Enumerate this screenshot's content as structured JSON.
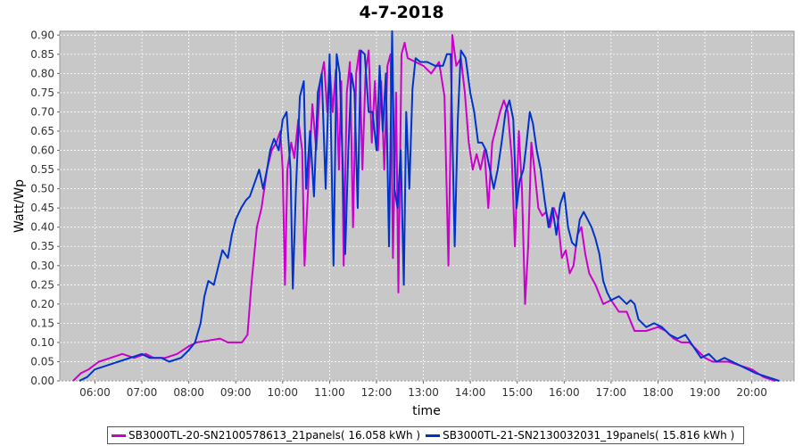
{
  "chart_data": {
    "type": "line",
    "title": "4-7-2018",
    "xlabel": "time",
    "ylabel": "Watt/Wp",
    "xlim_hours": [
      5.25,
      20.9
    ],
    "ylim": [
      0.0,
      0.91
    ],
    "x_ticks": [
      "06:00",
      "07:00",
      "08:00",
      "09:00",
      "10:00",
      "11:00",
      "12:00",
      "13:00",
      "14:00",
      "15:00",
      "16:00",
      "17:00",
      "18:00",
      "19:00",
      "20:00"
    ],
    "y_ticks": [
      "0.00",
      "0.05",
      "0.10",
      "0.15",
      "0.20",
      "0.25",
      "0.30",
      "0.35",
      "0.40",
      "0.45",
      "0.50",
      "0.55",
      "0.60",
      "0.65",
      "0.70",
      "0.75",
      "0.80",
      "0.85",
      "0.90"
    ],
    "grid": true,
    "legend_position": "bottom",
    "background_color": "#c8c8c8",
    "series": [
      {
        "name": "SB3000TL-20-SN2100578613_21panels( 16.058 kWh )",
        "color": "#cc00cc",
        "points": [
          [
            "05:32",
            0.0
          ],
          [
            "05:42",
            0.02
          ],
          [
            "05:52",
            0.03
          ],
          [
            "06:05",
            0.05
          ],
          [
            "06:20",
            0.06
          ],
          [
            "06:35",
            0.07
          ],
          [
            "06:50",
            0.06
          ],
          [
            "07:05",
            0.07
          ],
          [
            "07:15",
            0.06
          ],
          [
            "07:30",
            0.06
          ],
          [
            "07:45",
            0.07
          ],
          [
            "08:00",
            0.09
          ],
          [
            "08:10",
            0.1
          ],
          [
            "08:25",
            0.105
          ],
          [
            "08:40",
            0.11
          ],
          [
            "08:50",
            0.1
          ],
          [
            "09:00",
            0.1
          ],
          [
            "09:08",
            0.1
          ],
          [
            "09:15",
            0.12
          ],
          [
            "09:20",
            0.25
          ],
          [
            "09:27",
            0.4
          ],
          [
            "09:33",
            0.45
          ],
          [
            "09:40",
            0.55
          ],
          [
            "09:46",
            0.6
          ],
          [
            "09:52",
            0.62
          ],
          [
            "09:57",
            0.65
          ],
          [
            "10:00",
            0.55
          ],
          [
            "10:03",
            0.25
          ],
          [
            "10:06",
            0.55
          ],
          [
            "10:11",
            0.62
          ],
          [
            "10:15",
            0.58
          ],
          [
            "10:20",
            0.68
          ],
          [
            "10:25",
            0.6
          ],
          [
            "10:28",
            0.3
          ],
          [
            "10:33",
            0.52
          ],
          [
            "10:38",
            0.72
          ],
          [
            "10:43",
            0.6
          ],
          [
            "10:48",
            0.78
          ],
          [
            "10:53",
            0.83
          ],
          [
            "10:57",
            0.7
          ],
          [
            "11:00",
            0.82
          ],
          [
            "11:04",
            0.7
          ],
          [
            "11:08",
            0.81
          ],
          [
            "11:12",
            0.55
          ],
          [
            "11:15",
            0.78
          ],
          [
            "11:18",
            0.3
          ],
          [
            "11:22",
            0.75
          ],
          [
            "11:26",
            0.83
          ],
          [
            "11:30",
            0.4
          ],
          [
            "11:34",
            0.8
          ],
          [
            "11:38",
            0.86
          ],
          [
            "11:42",
            0.55
          ],
          [
            "11:46",
            0.8
          ],
          [
            "11:50",
            0.86
          ],
          [
            "11:54",
            0.62
          ],
          [
            "11:58",
            0.78
          ],
          [
            "12:02",
            0.6
          ],
          [
            "12:06",
            0.78
          ],
          [
            "12:10",
            0.55
          ],
          [
            "12:14",
            0.82
          ],
          [
            "12:18",
            0.85
          ],
          [
            "12:21",
            0.32
          ],
          [
            "12:25",
            0.75
          ],
          [
            "12:28",
            0.23
          ],
          [
            "12:32",
            0.85
          ],
          [
            "12:36",
            0.88
          ],
          [
            "12:40",
            0.84
          ],
          [
            "12:50",
            0.83
          ],
          [
            "13:00",
            0.82
          ],
          [
            "13:10",
            0.8
          ],
          [
            "13:20",
            0.83
          ],
          [
            "13:27",
            0.74
          ],
          [
            "13:32",
            0.3
          ],
          [
            "13:37",
            0.9
          ],
          [
            "13:42",
            0.82
          ],
          [
            "13:48",
            0.84
          ],
          [
            "13:53",
            0.75
          ],
          [
            "13:58",
            0.62
          ],
          [
            "14:03",
            0.55
          ],
          [
            "14:08",
            0.59
          ],
          [
            "14:13",
            0.55
          ],
          [
            "14:18",
            0.6
          ],
          [
            "14:23",
            0.45
          ],
          [
            "14:28",
            0.62
          ],
          [
            "14:33",
            0.66
          ],
          [
            "14:38",
            0.7
          ],
          [
            "14:43",
            0.73
          ],
          [
            "14:48",
            0.7
          ],
          [
            "14:53",
            0.58
          ],
          [
            "14:57",
            0.35
          ],
          [
            "15:02",
            0.65
          ],
          [
            "15:06",
            0.5
          ],
          [
            "15:10",
            0.2
          ],
          [
            "15:14",
            0.35
          ],
          [
            "15:18",
            0.62
          ],
          [
            "15:22",
            0.55
          ],
          [
            "15:27",
            0.45
          ],
          [
            "15:32",
            0.43
          ],
          [
            "15:37",
            0.44
          ],
          [
            "15:42",
            0.4
          ],
          [
            "15:47",
            0.45
          ],
          [
            "15:52",
            0.42
          ],
          [
            "15:57",
            0.32
          ],
          [
            "16:02",
            0.34
          ],
          [
            "16:07",
            0.28
          ],
          [
            "16:12",
            0.3
          ],
          [
            "16:17",
            0.38
          ],
          [
            "16:22",
            0.4
          ],
          [
            "16:27",
            0.33
          ],
          [
            "16:32",
            0.28
          ],
          [
            "16:40",
            0.25
          ],
          [
            "16:50",
            0.2
          ],
          [
            "17:00",
            0.21
          ],
          [
            "17:10",
            0.18
          ],
          [
            "17:20",
            0.18
          ],
          [
            "17:30",
            0.13
          ],
          [
            "17:45",
            0.13
          ],
          [
            "18:00",
            0.14
          ],
          [
            "18:10",
            0.13
          ],
          [
            "18:20",
            0.11
          ],
          [
            "18:30",
            0.1
          ],
          [
            "18:40",
            0.1
          ],
          [
            "18:50",
            0.08
          ],
          [
            "19:00",
            0.06
          ],
          [
            "19:10",
            0.05
          ],
          [
            "19:20",
            0.05
          ],
          [
            "19:30",
            0.05
          ],
          [
            "19:45",
            0.04
          ],
          [
            "20:00",
            0.03
          ],
          [
            "20:15",
            0.01
          ],
          [
            "20:30",
            0.0
          ]
        ]
      },
      {
        "name": "SB3000TL-21-SN2130032031_19panels( 15.816 kWh )",
        "color": "#0033cc",
        "points": [
          [
            "05:40",
            0.0
          ],
          [
            "05:50",
            0.01
          ],
          [
            "06:00",
            0.03
          ],
          [
            "06:15",
            0.04
          ],
          [
            "06:30",
            0.05
          ],
          [
            "06:45",
            0.06
          ],
          [
            "07:00",
            0.07
          ],
          [
            "07:10",
            0.06
          ],
          [
            "07:25",
            0.06
          ],
          [
            "07:35",
            0.05
          ],
          [
            "07:50",
            0.06
          ],
          [
            "08:00",
            0.08
          ],
          [
            "08:08",
            0.1
          ],
          [
            "08:15",
            0.15
          ],
          [
            "08:20",
            0.22
          ],
          [
            "08:25",
            0.26
          ],
          [
            "08:32",
            0.25
          ],
          [
            "08:38",
            0.3
          ],
          [
            "08:43",
            0.34
          ],
          [
            "08:50",
            0.32
          ],
          [
            "08:55",
            0.38
          ],
          [
            "09:00",
            0.42
          ],
          [
            "09:07",
            0.45
          ],
          [
            "09:13",
            0.47
          ],
          [
            "09:18",
            0.48
          ],
          [
            "09:25",
            0.52
          ],
          [
            "09:30",
            0.55
          ],
          [
            "09:35",
            0.5
          ],
          [
            "09:40",
            0.55
          ],
          [
            "09:44",
            0.6
          ],
          [
            "09:49",
            0.63
          ],
          [
            "09:55",
            0.6
          ],
          [
            "10:00",
            0.68
          ],
          [
            "10:05",
            0.7
          ],
          [
            "10:10",
            0.55
          ],
          [
            "10:13",
            0.24
          ],
          [
            "10:17",
            0.5
          ],
          [
            "10:22",
            0.74
          ],
          [
            "10:27",
            0.78
          ],
          [
            "10:30",
            0.5
          ],
          [
            "10:35",
            0.65
          ],
          [
            "10:40",
            0.48
          ],
          [
            "10:45",
            0.75
          ],
          [
            "10:50",
            0.8
          ],
          [
            "10:55",
            0.5
          ],
          [
            "11:00",
            0.85
          ],
          [
            "11:05",
            0.3
          ],
          [
            "11:09",
            0.85
          ],
          [
            "11:13",
            0.8
          ],
          [
            "11:17",
            0.55
          ],
          [
            "11:20",
            0.33
          ],
          [
            "11:24",
            0.6
          ],
          [
            "11:28",
            0.8
          ],
          [
            "11:32",
            0.75
          ],
          [
            "11:36",
            0.45
          ],
          [
            "11:40",
            0.86
          ],
          [
            "11:45",
            0.85
          ],
          [
            "11:50",
            0.7
          ],
          [
            "11:55",
            0.7
          ],
          [
            "12:00",
            0.6
          ],
          [
            "12:04",
            0.82
          ],
          [
            "12:08",
            0.65
          ],
          [
            "12:12",
            0.8
          ],
          [
            "12:16",
            0.35
          ],
          [
            "12:20",
            0.91
          ],
          [
            "12:23",
            0.5
          ],
          [
            "12:27",
            0.45
          ],
          [
            "12:31",
            0.6
          ],
          [
            "12:35",
            0.25
          ],
          [
            "12:38",
            0.7
          ],
          [
            "12:42",
            0.5
          ],
          [
            "12:46",
            0.76
          ],
          [
            "12:50",
            0.84
          ],
          [
            "12:56",
            0.83
          ],
          [
            "13:05",
            0.83
          ],
          [
            "13:15",
            0.82
          ],
          [
            "13:25",
            0.82
          ],
          [
            "13:30",
            0.85
          ],
          [
            "13:35",
            0.85
          ],
          [
            "13:40",
            0.35
          ],
          [
            "13:44",
            0.68
          ],
          [
            "13:48",
            0.86
          ],
          [
            "13:54",
            0.84
          ],
          [
            "14:00",
            0.75
          ],
          [
            "14:05",
            0.7
          ],
          [
            "14:10",
            0.62
          ],
          [
            "14:15",
            0.62
          ],
          [
            "14:20",
            0.6
          ],
          [
            "14:25",
            0.55
          ],
          [
            "14:30",
            0.5
          ],
          [
            "14:35",
            0.55
          ],
          [
            "14:40",
            0.62
          ],
          [
            "14:45",
            0.7
          ],
          [
            "14:50",
            0.73
          ],
          [
            "14:55",
            0.68
          ],
          [
            "14:59",
            0.45
          ],
          [
            "15:03",
            0.52
          ],
          [
            "15:08",
            0.55
          ],
          [
            "15:12",
            0.62
          ],
          [
            "15:16",
            0.7
          ],
          [
            "15:20",
            0.67
          ],
          [
            "15:25",
            0.6
          ],
          [
            "15:30",
            0.55
          ],
          [
            "15:35",
            0.47
          ],
          [
            "15:40",
            0.4
          ],
          [
            "15:45",
            0.45
          ],
          [
            "15:50",
            0.38
          ],
          [
            "15:55",
            0.46
          ],
          [
            "16:00",
            0.49
          ],
          [
            "16:05",
            0.4
          ],
          [
            "16:10",
            0.36
          ],
          [
            "16:15",
            0.35
          ],
          [
            "16:20",
            0.42
          ],
          [
            "16:25",
            0.44
          ],
          [
            "16:30",
            0.42
          ],
          [
            "16:35",
            0.4
          ],
          [
            "16:40",
            0.37
          ],
          [
            "16:45",
            0.33
          ],
          [
            "16:50",
            0.26
          ],
          [
            "16:55",
            0.23
          ],
          [
            "17:00",
            0.21
          ],
          [
            "17:10",
            0.22
          ],
          [
            "17:20",
            0.2
          ],
          [
            "17:25",
            0.21
          ],
          [
            "17:30",
            0.2
          ],
          [
            "17:35",
            0.16
          ],
          [
            "17:45",
            0.14
          ],
          [
            "17:55",
            0.15
          ],
          [
            "18:05",
            0.14
          ],
          [
            "18:15",
            0.12
          ],
          [
            "18:25",
            0.11
          ],
          [
            "18:35",
            0.12
          ],
          [
            "18:45",
            0.09
          ],
          [
            "18:55",
            0.06
          ],
          [
            "19:05",
            0.07
          ],
          [
            "19:15",
            0.05
          ],
          [
            "19:25",
            0.06
          ],
          [
            "19:35",
            0.05
          ],
          [
            "19:45",
            0.04
          ],
          [
            "19:55",
            0.03
          ],
          [
            "20:05",
            0.02
          ],
          [
            "20:20",
            0.01
          ],
          [
            "20:35",
            0.0
          ]
        ]
      }
    ]
  }
}
